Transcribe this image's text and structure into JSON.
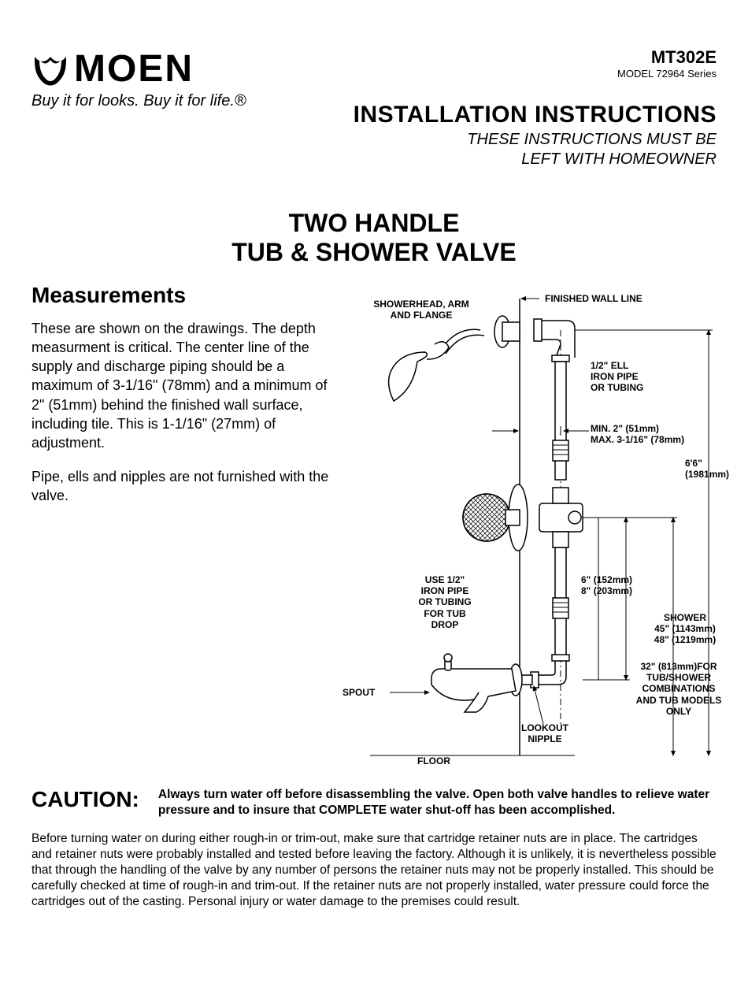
{
  "brand": {
    "name": "MOEN",
    "tagline": "Buy it for looks. Buy it for life.®"
  },
  "doc": {
    "code": "MT302E",
    "model_line": "MODEL 72964 Series",
    "install_title": "INSTALLATION INSTRUCTIONS",
    "install_sub_line1": "THESE INSTRUCTIONS MUST BE",
    "install_sub_line2": "LEFT WITH HOMEOWNER"
  },
  "product": {
    "line1": "TWO HANDLE",
    "line2": "TUB & SHOWER VALVE"
  },
  "measurements": {
    "heading": "Measurements",
    "p1": "These are shown on the drawings.  The depth measurment is critical.  The center line of the supply and discharge piping should be a maximum of 3-1/16\" (78mm) and a minimum of 2\" (51mm) behind the finished wall surface, including tile.  This is 1-1/16\" (27mm) of adjustment.",
    "p2": "Pipe, ells and nipples are not furnished with the valve."
  },
  "diagram": {
    "labels": {
      "showerhead": "SHOWERHEAD, ARM\nAND FLANGE",
      "finished_wall": "FINISHED WALL LINE",
      "ell_pipe": "1/2\" ELL\nIRON PIPE\nOR TUBING",
      "depth_min": "MIN. 2\" (51mm)",
      "depth_max": "MAX. 3-1/16\" (78mm)",
      "total_height": "6'6\"\n(1981mm)",
      "valve_to_spout_1": "6\" (152mm)",
      "valve_to_spout_2": "8\" (203mm)",
      "tub_drop": "USE 1/2\"\nIRON PIPE\nOR TUBING\nFOR TUB\nDROP",
      "shower_height_1": "SHOWER",
      "shower_height_2": "45\" (1143mm)",
      "shower_height_3": "48\" (1219mm)",
      "tub_height_1": "32\" (813mm)FOR",
      "tub_height_2": "TUB/SHOWER",
      "tub_height_3": "COMBINATIONS",
      "tub_height_4": "AND TUB MODELS",
      "tub_height_5": "ONLY",
      "spout": "SPOUT",
      "lookout": "LOOKOUT\nNIPPLE",
      "floor": "FLOOR"
    },
    "colors": {
      "line": "#000000",
      "bg": "#ffffff"
    }
  },
  "caution": {
    "heading": "CAUTION:",
    "text": "Always turn water off before disassembling the valve.  Open both valve handles to relieve water pressure and to insure that COMPLETE water shut-off has been accomplished."
  },
  "body_para": "Before turning water on during either rough-in or trim-out, make sure that cartridge retainer nuts are in place. The cartridges and retainer nuts were probably installed and tested before leaving the factory.  Although it is unlikely, it is nevertheless possible that through the handling of the valve by any number of persons the retainer nuts may not be properly installed. This should be carefully checked at time of rough-in and trim-out.  If the retainer nuts are not properly installed, water pressure could force the cartridges out of the casting.  Personal injury or water damage to the premises could result."
}
